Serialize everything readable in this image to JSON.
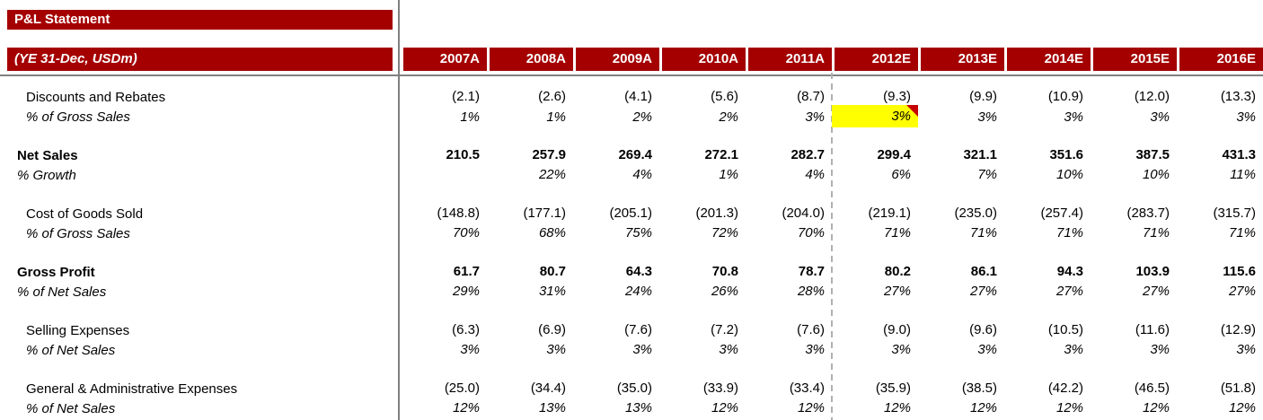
{
  "title": "P&L Statement",
  "header": {
    "label": "(YE 31-Dec, USDm)",
    "columns": [
      "2007A",
      "2008A",
      "2009A",
      "2010A",
      "2011A",
      "2012E",
      "2013E",
      "2014E",
      "2015E",
      "2016E"
    ]
  },
  "rows": [
    {
      "label": "Discounts and Rebates",
      "style": "normal",
      "indent": 2,
      "group_start": false,
      "values": [
        "(2.1)",
        "(2.6)",
        "(4.1)",
        "(5.6)",
        "(8.7)",
        "(9.3)",
        "(9.9)",
        "(10.9)",
        "(12.0)",
        "(13.3)"
      ]
    },
    {
      "label": "% of Gross Sales",
      "style": "pct",
      "indent": 2,
      "group_start": false,
      "values": [
        "1%",
        "1%",
        "2%",
        "2%",
        "3%",
        "3%",
        "3%",
        "3%",
        "3%",
        "3%"
      ],
      "highlight": {
        "col": 5,
        "comment": true
      }
    },
    {
      "label": "Net Sales",
      "style": "bold",
      "indent": 1,
      "group_start": true,
      "values": [
        "210.5",
        "257.9",
        "269.4",
        "272.1",
        "282.7",
        "299.4",
        "321.1",
        "351.6",
        "387.5",
        "431.3"
      ]
    },
    {
      "label": "% Growth",
      "style": "pct",
      "indent": 1,
      "group_start": false,
      "values": [
        "",
        "22%",
        "4%",
        "1%",
        "4%",
        "6%",
        "7%",
        "10%",
        "10%",
        "11%"
      ]
    },
    {
      "label": "Cost of Goods Sold",
      "style": "normal",
      "indent": 2,
      "group_start": true,
      "values": [
        "(148.8)",
        "(177.1)",
        "(205.1)",
        "(201.3)",
        "(204.0)",
        "(219.1)",
        "(235.0)",
        "(257.4)",
        "(283.7)",
        "(315.7)"
      ]
    },
    {
      "label": "% of Gross Sales",
      "style": "pct",
      "indent": 2,
      "group_start": false,
      "values": [
        "70%",
        "68%",
        "75%",
        "72%",
        "70%",
        "71%",
        "71%",
        "71%",
        "71%",
        "71%"
      ]
    },
    {
      "label": "Gross Profit",
      "style": "bold",
      "indent": 1,
      "group_start": true,
      "values": [
        "61.7",
        "80.7",
        "64.3",
        "70.8",
        "78.7",
        "80.2",
        "86.1",
        "94.3",
        "103.9",
        "115.6"
      ]
    },
    {
      "label": "% of Net Sales",
      "style": "pct",
      "indent": 1,
      "group_start": false,
      "values": [
        "29%",
        "31%",
        "24%",
        "26%",
        "28%",
        "27%",
        "27%",
        "27%",
        "27%",
        "27%"
      ]
    },
    {
      "label": "Selling Expenses",
      "style": "normal",
      "indent": 2,
      "group_start": true,
      "values": [
        "(6.3)",
        "(6.9)",
        "(7.6)",
        "(7.2)",
        "(7.6)",
        "(9.0)",
        "(9.6)",
        "(10.5)",
        "(11.6)",
        "(12.9)"
      ]
    },
    {
      "label": "% of Net Sales",
      "style": "pct",
      "indent": 2,
      "group_start": false,
      "values": [
        "3%",
        "3%",
        "3%",
        "3%",
        "3%",
        "3%",
        "3%",
        "3%",
        "3%",
        "3%"
      ]
    },
    {
      "label": "General & Administrative Expenses",
      "style": "normal",
      "indent": 2,
      "group_start": true,
      "values": [
        "(25.0)",
        "(34.4)",
        "(35.0)",
        "(33.9)",
        "(33.4)",
        "(35.9)",
        "(38.5)",
        "(42.2)",
        "(46.5)",
        "(51.8)"
      ]
    },
    {
      "label": "% of Net Sales",
      "style": "pct",
      "indent": 2,
      "group_start": false,
      "values": [
        "12%",
        "13%",
        "13%",
        "12%",
        "12%",
        "12%",
        "12%",
        "12%",
        "12%",
        "12%"
      ]
    }
  ],
  "colors": {
    "header_red": "#A40000",
    "highlight_yellow": "#FFFF00",
    "comment_red": "#C40000",
    "grid_gray": "#808080",
    "dash_gray": "#B0B0B0"
  }
}
